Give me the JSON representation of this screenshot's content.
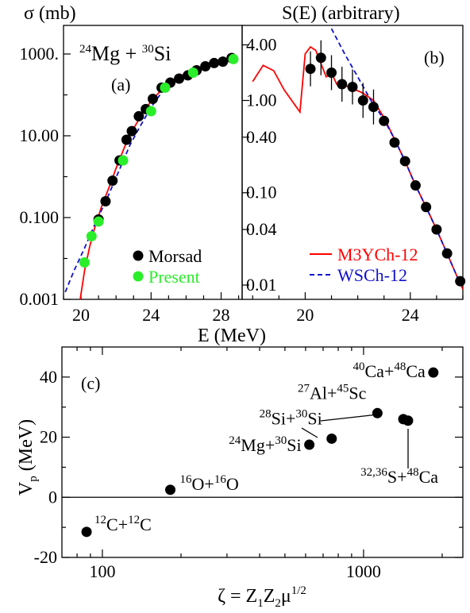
{
  "chart_data": [
    {
      "type": "scatter",
      "panel_tag": "(a)",
      "ylabel": "σ (mb)",
      "xlabel": "E (MeV)",
      "reaction": {
        "a_mass": "24",
        "a_sym": "Mg",
        "plus": "+",
        "b_mass": "30",
        "b_sym": "Si"
      },
      "xlim": [
        19,
        29.2
      ],
      "ylim": [
        0.001,
        5000
      ],
      "yscale": "log",
      "xticks": [
        20,
        24,
        28
      ],
      "yticks": [
        {
          "v": 1000,
          "label": "1000."
        },
        {
          "v": 10,
          "label": "10.00"
        },
        {
          "v": 0.1,
          "label": "0.100"
        },
        {
          "v": 0.001,
          "label": "0.001"
        }
      ],
      "legend": {
        "placement": "bottom-right",
        "entries": [
          {
            "name": "Morsad",
            "color": "#000000"
          },
          {
            "name": "Present",
            "color": "#2bee2b"
          }
        ]
      },
      "series": [
        {
          "name": "Morsad",
          "color": "#000000",
          "x": [
            21.0,
            21.4,
            21.8,
            22.2,
            22.6,
            22.9,
            23.3,
            23.7,
            24.1,
            24.6,
            25.1,
            25.6,
            26.1,
            26.6,
            27.1,
            27.6,
            28.1,
            28.6
          ],
          "y": [
            0.09,
            0.25,
            0.8,
            2.5,
            8,
            13,
            30,
            45,
            80,
            150,
            200,
            250,
            300,
            400,
            500,
            600,
            650,
            800
          ]
        },
        {
          "name": "Present",
          "color": "#2bee2b",
          "x": [
            20.2,
            20.6,
            21.0,
            22.4,
            24.0,
            24.8,
            26.4,
            28.7
          ],
          "y": [
            0.008,
            0.035,
            0.08,
            2.5,
            40,
            150,
            350,
            750
          ]
        },
        {
          "name": "M3YCh-12",
          "color": "#ff0000",
          "style": "solid",
          "x": [
            19.95,
            20.2,
            20.5,
            20.8,
            21.2,
            21.6,
            22.0,
            22.5,
            23.0,
            23.5,
            24.0,
            24.5,
            25.0,
            25.5,
            26.0,
            26.5,
            27.0,
            27.5,
            28.0,
            28.5,
            28.8
          ],
          "y": [
            0.001,
            0.005,
            0.02,
            0.06,
            0.2,
            0.55,
            1.6,
            5.5,
            15,
            35,
            70,
            120,
            180,
            260,
            340,
            420,
            500,
            580,
            650,
            720,
            760
          ]
        },
        {
          "name": "WSCh-12",
          "color": "#1010cc",
          "style": "dashed",
          "x": [
            19.1,
            19.6,
            20.2,
            20.8,
            21.5,
            22.2,
            22.8,
            23.3,
            24.0,
            24.8
          ],
          "y": [
            0.0015,
            0.005,
            0.018,
            0.07,
            0.3,
            1.5,
            6,
            15,
            50,
            150
          ]
        }
      ]
    },
    {
      "type": "scatter",
      "panel_tag": "(b)",
      "ylabel": "S(E) (arbitrary)",
      "xlim": [
        17.6,
        26.0
      ],
      "ylim": [
        0.007,
        6.5
      ],
      "yscale": "log",
      "xticks": [
        20,
        24
      ],
      "yticks": [
        {
          "v": 4.0,
          "label": "4.00"
        },
        {
          "v": 1.0,
          "label": "1.00"
        },
        {
          "v": 0.4,
          "label": "0.40"
        },
        {
          "v": 0.1,
          "label": "0.10"
        },
        {
          "v": 0.04,
          "label": "0.04"
        },
        {
          "v": 0.01,
          "label": "0.01"
        }
      ],
      "legend": {
        "placement": "bottom-right",
        "entries": [
          {
            "name": "M3YCh-12",
            "color": "#ff0000",
            "style": "solid"
          },
          {
            "name": "WSCh-12",
            "color": "#1010cc",
            "style": "dashed"
          }
        ]
      },
      "series": [
        {
          "name": "data",
          "color": "#000000",
          "x": [
            20.2,
            20.6,
            21.0,
            21.4,
            21.8,
            22.2,
            22.6,
            23.0,
            23.4,
            23.8,
            24.2,
            24.6,
            25.0,
            25.4,
            25.9
          ],
          "y": [
            2.2,
            2.9,
            2.0,
            1.5,
            1.4,
            1.0,
            0.85,
            0.6,
            0.35,
            0.22,
            0.12,
            0.07,
            0.04,
            0.022,
            0.011
          ]
        },
        {
          "name": "M3YCh-12",
          "color": "#ff0000",
          "style": "solid",
          "x": [
            18.0,
            18.4,
            18.8,
            19.2,
            19.6,
            19.8,
            20.0,
            20.2,
            20.4,
            20.6,
            20.8,
            21.0,
            21.2,
            21.4,
            21.8,
            22.2,
            22.6,
            23.0,
            23.4,
            23.8,
            24.2,
            24.6,
            25.0,
            25.4,
            25.8,
            26.0
          ],
          "y": [
            1.6,
            2.4,
            2.1,
            1.3,
            0.9,
            0.75,
            3.2,
            3.8,
            3.5,
            2.5,
            1.8,
            2.0,
            1.5,
            1.5,
            1.35,
            1.2,
            1.0,
            0.65,
            0.38,
            0.22,
            0.12,
            0.07,
            0.04,
            0.022,
            0.012,
            0.009
          ]
        },
        {
          "name": "WSCh-12",
          "color": "#1010cc",
          "style": "dashed",
          "x": [
            21.0,
            21.5,
            22.0,
            22.5,
            23.0,
            23.4,
            23.8,
            24.2,
            24.6,
            25.0,
            25.4,
            25.8
          ],
          "y": [
            6.0,
            3.2,
            1.8,
            1.0,
            0.62,
            0.38,
            0.22,
            0.12,
            0.07,
            0.04,
            0.022,
            0.012
          ]
        }
      ]
    },
    {
      "type": "scatter",
      "panel_tag": "(c)",
      "ylabel": "V",
      "ylabel_sub": "p",
      "ylabel_unit": "(MeV)",
      "xlabel_parts": {
        "zeta": "ζ = Z",
        "sub1": "1",
        "z2": "Z",
        "sub2": "2",
        "mu": "μ",
        "sup": "1/2"
      },
      "xscale": "log",
      "xlim": [
        70,
        2400
      ],
      "ylim": [
        -20,
        50
      ],
      "xticks": [
        {
          "v": 100,
          "label": "100"
        },
        {
          "v": 1000,
          "label": "1000"
        }
      ],
      "yticks": [
        {
          "v": 40,
          "label": "40"
        },
        {
          "v": 20,
          "label": "20"
        },
        {
          "v": 0,
          "label": "0"
        },
        {
          "v": -20,
          "label": "-20"
        }
      ],
      "hline": 0,
      "points": [
        {
          "x": 87,
          "y": -11.5,
          "label": {
            "m1": "12",
            "s1": "C",
            "plus": "+",
            "m2": "12",
            "s2": "C"
          }
        },
        {
          "x": 182,
          "y": 2.5,
          "label": {
            "m1": "16",
            "s1": "O",
            "plus": "+",
            "m2": "16",
            "s2": "O"
          }
        },
        {
          "x": 620,
          "y": 17.5,
          "label": {
            "m1": "24",
            "s1": "Mg",
            "plus": "+",
            "m2": "30",
            "s2": "Si"
          }
        },
        {
          "x": 755,
          "y": 19.5,
          "label": {
            "m1": "28",
            "s1": "Si",
            "plus": "+",
            "m2": "30",
            "s2": "Si"
          }
        },
        {
          "x": 1130,
          "y": 28.0,
          "label": {
            "m1": "27",
            "s1": "Al",
            "plus": "+",
            "m2": "45",
            "s2": "Sc"
          }
        },
        {
          "x": 1420,
          "y": 26.0,
          "label": {
            "m1": "32,36",
            "s1": "S",
            "plus": "+",
            "m2": "48",
            "s2": "Ca"
          }
        },
        {
          "x": 1480,
          "y": 25.5,
          "label": null
        },
        {
          "x": 1850,
          "y": 41.5,
          "label": {
            "m1": "40",
            "s1": "Ca",
            "plus": "+",
            "m2": "48",
            "s2": "Ca"
          }
        }
      ]
    }
  ]
}
